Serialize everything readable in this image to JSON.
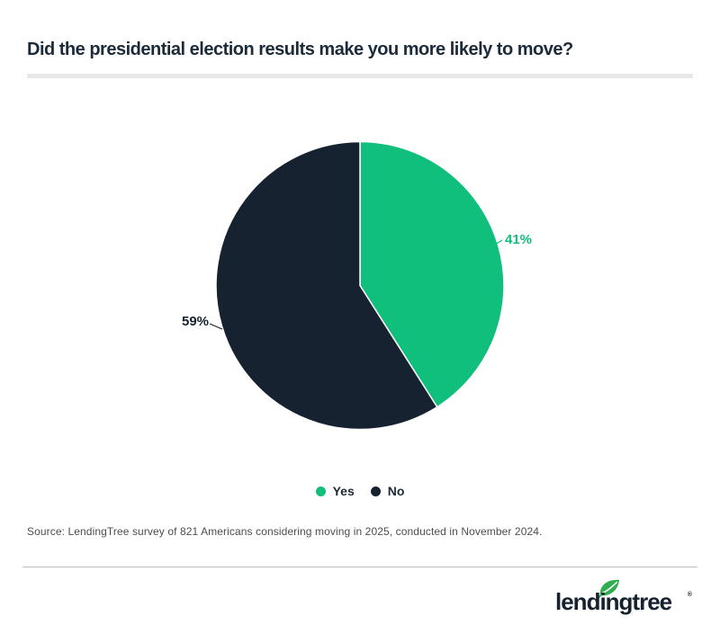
{
  "chart_data": {
    "type": "pie",
    "title": "Did the presidential election results make you more likely to move?",
    "labels": [
      "Yes",
      "No"
    ],
    "values": [
      41,
      59
    ],
    "slice_labels": [
      "41%",
      "59%"
    ],
    "colors": [
      "#10bf7c",
      "#162230"
    ],
    "start_angle_deg": -90,
    "direction": "clockwise",
    "legend_position": "bottom"
  },
  "source_note": "Source: LendingTree survey of 821 Americans considering moving in 2025, conducted in November 2024.",
  "branding": {
    "logo_text": "lendingtree",
    "registered_mark": "®",
    "logo_color": "#162230",
    "leaf_color": "#2fae4f"
  },
  "style_tokens": {
    "title_color": "#1c2b3a",
    "rule_color": "#e8e8e8",
    "source_color": "#4d4d4d",
    "background": "#ffffff"
  }
}
